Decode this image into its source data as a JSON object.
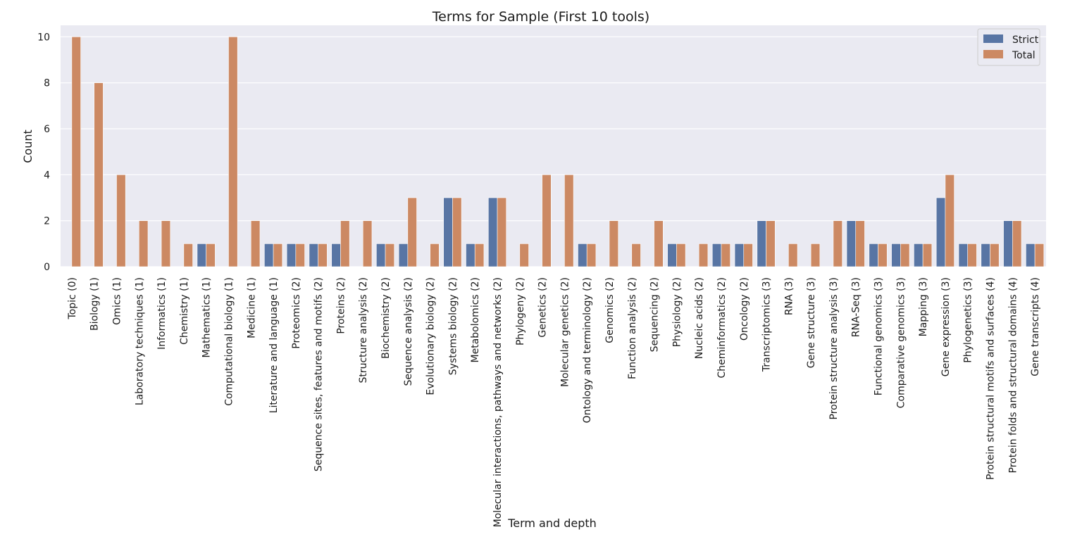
{
  "chart_data": {
    "type": "bar",
    "title": "Terms for Sample (First 10 tools)",
    "xlabel": "Term and depth",
    "ylabel": "Count",
    "ylim": [
      0,
      10.5
    ],
    "yticks": [
      0,
      2,
      4,
      6,
      8,
      10
    ],
    "grid": true,
    "legend_position": "top-right",
    "colors": {
      "Strict": "#5875a4",
      "Total": "#cc8963",
      "plot_background": "#eaeaf2",
      "grid": "#ffffff"
    },
    "categories": [
      "Topic (0)",
      "Biology (1)",
      "Omics (1)",
      "Laboratory techniques (1)",
      "Informatics (1)",
      "Chemistry (1)",
      "Mathematics (1)",
      "Computational biology (1)",
      "Medicine (1)",
      "Literature and language (1)",
      "Proteomics (2)",
      "Sequence sites, features and motifs (2)",
      "Proteins (2)",
      "Structure analysis (2)",
      "Biochemistry (2)",
      "Sequence analysis (2)",
      "Evolutionary biology (2)",
      "Systems biology (2)",
      "Metabolomics (2)",
      "Molecular interactions, pathways and networks (2)",
      "Phylogeny (2)",
      "Genetics (2)",
      "Molecular genetics (2)",
      "Ontology and terminology (2)",
      "Genomics (2)",
      "Function analysis (2)",
      "Sequencing (2)",
      "Physiology (2)",
      "Nucleic acids (2)",
      "Cheminformatics (2)",
      "Oncology (2)",
      "Transcriptomics (3)",
      "RNA (3)",
      "Gene structure (3)",
      "Protein structure analysis (3)",
      "RNA-Seq (3)",
      "Functional genomics (3)",
      "Comparative genomics (3)",
      "Mapping (3)",
      "Gene expression (3)",
      "Phylogenetics (3)",
      "Protein structural motifs and surfaces (4)",
      "Protein folds and structural domains (4)",
      "Gene transcripts (4)"
    ],
    "series": [
      {
        "name": "Strict",
        "values": [
          0,
          0,
          0,
          0,
          0,
          0,
          1,
          0,
          0,
          1,
          1,
          1,
          1,
          0,
          1,
          1,
          0,
          3,
          1,
          3,
          0,
          0,
          0,
          1,
          0,
          0,
          0,
          1,
          0,
          1,
          1,
          2,
          0,
          0,
          0,
          2,
          1,
          1,
          1,
          3,
          1,
          1,
          2,
          1
        ]
      },
      {
        "name": "Total",
        "values": [
          10,
          8,
          4,
          2,
          2,
          1,
          1,
          10,
          2,
          1,
          1,
          1,
          2,
          2,
          1,
          3,
          1,
          3,
          1,
          3,
          1,
          4,
          4,
          1,
          2,
          1,
          2,
          1,
          1,
          1,
          1,
          2,
          1,
          1,
          2,
          2,
          1,
          1,
          1,
          4,
          1,
          1,
          2,
          1
        ]
      }
    ]
  }
}
